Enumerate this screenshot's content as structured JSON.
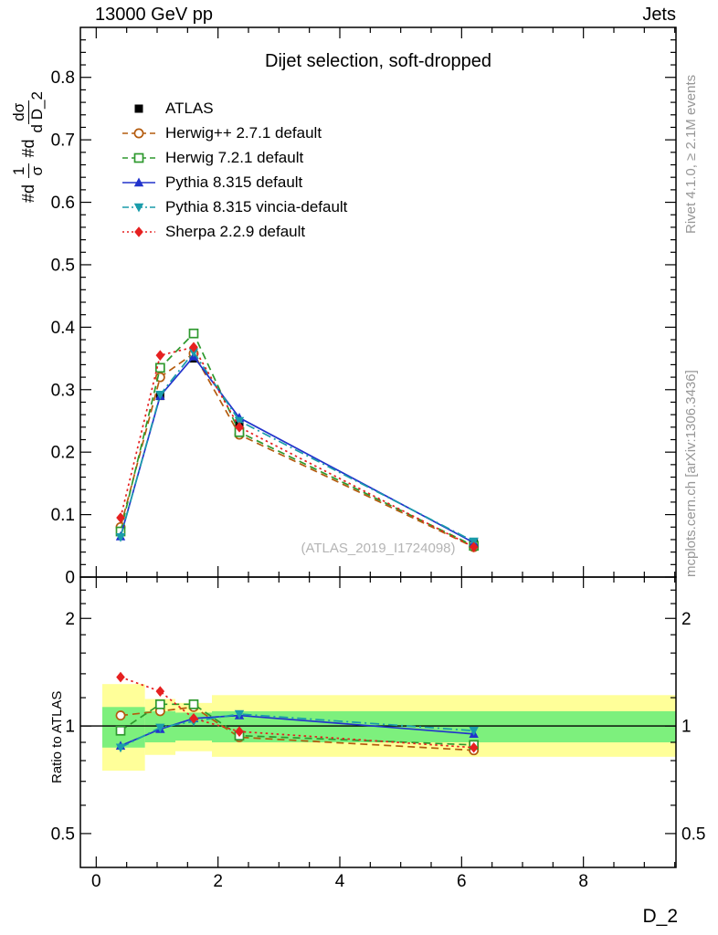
{
  "header": {
    "left": "13000 GeV pp",
    "right": "Jets"
  },
  "watermark": "(ATLAS_2019_I1724098)",
  "margin_notes": {
    "rivet": "Rivet 4.1.0, ≥ 2.1M events",
    "mcplots": "mcplots.cern.ch [arXiv:1306.3436]"
  },
  "axes": {
    "main_ylabel": {
      "t1": "#d",
      "num1": "1",
      "den1": "σ",
      "t2": "#d",
      "num2": "dσ",
      "den2": "d D_2"
    }
  },
  "chart_data": {
    "type": "line",
    "title": "Dijet selection, soft-dropped",
    "xlabel": "D_2",
    "x": [
      0.4,
      1.05,
      1.6,
      2.35,
      6.2
    ],
    "xlim": [
      -0.26,
      9.52
    ],
    "xticks": {
      "values": [
        0,
        2,
        4,
        6,
        8
      ],
      "labels": [
        "0",
        "2",
        "4",
        "6",
        "8"
      ],
      "minor_step": 0.5
    },
    "main_panel": {
      "ylim": [
        0,
        0.88
      ],
      "yticks": {
        "values": [
          0,
          0.1,
          0.2,
          0.3,
          0.4,
          0.5,
          0.6,
          0.7,
          0.8
        ],
        "labels": [
          "0",
          "0.1",
          "0.2",
          "0.3",
          "0.4",
          "0.5",
          "0.6",
          "0.7",
          "0.8"
        ],
        "minor_step": 0.02
      }
    },
    "ratio_panel": {
      "ylabel": "Ratio to ATLAS",
      "scale": "log",
      "ylim": [
        0.402,
        2.61
      ],
      "yticks": {
        "values": [
          0.5,
          1,
          2
        ],
        "labels": [
          "0.5",
          "1",
          "2"
        ]
      },
      "minor_yticks": [
        0.6,
        0.7,
        0.8,
        0.9,
        1.2,
        1.4,
        1.6,
        1.8,
        2.2,
        2.4
      ],
      "ref_line": 1,
      "band_colors": {
        "yellow": "#ffff99",
        "green": "#7df07d"
      },
      "bands": [
        {
          "x0": 0.1,
          "x1": 0.8,
          "yellow": [
            0.75,
            1.31
          ],
          "green": [
            0.87,
            1.13
          ]
        },
        {
          "x0": 0.8,
          "x1": 1.3,
          "yellow": [
            0.83,
            1.19
          ],
          "green": [
            0.9,
            1.1
          ]
        },
        {
          "x0": 1.3,
          "x1": 1.9,
          "yellow": [
            0.85,
            1.16
          ],
          "green": [
            0.91,
            1.09
          ]
        },
        {
          "x0": 1.9,
          "x1": 2.8,
          "yellow": [
            0.82,
            1.22
          ],
          "green": [
            0.9,
            1.1
          ]
        },
        {
          "x0": 2.8,
          "x1": 9.52,
          "yellow": [
            0.82,
            1.22
          ],
          "green": [
            0.9,
            1.1
          ]
        }
      ]
    },
    "series": [
      {
        "name": "ATLAS",
        "color": "#000000",
        "marker": "square",
        "line": "none",
        "values": [
          0.075,
          0.29,
          0.35,
          0.245,
          0.055
        ],
        "ratio": null
      },
      {
        "name": "Herwig++ 2.7.1 default",
        "color": "#b45b0e",
        "marker": "circle-open",
        "line": "dashed",
        "values": [
          0.08,
          0.32,
          0.358,
          0.228,
          0.048
        ],
        "ratio": [
          1.07,
          1.1,
          1.13,
          0.93,
          0.855
        ]
      },
      {
        "name": "Herwig 7.2.1 default",
        "color": "#2e992e",
        "marker": "square-open",
        "line": "dashed",
        "values": [
          0.073,
          0.335,
          0.39,
          0.232,
          0.05
        ],
        "ratio": [
          0.97,
          1.15,
          1.15,
          0.94,
          0.885
        ]
      },
      {
        "name": "Pythia 8.315 default",
        "color": "#2233cc",
        "marker": "triangle-up",
        "line": "solid",
        "values": [
          0.065,
          0.29,
          0.353,
          0.255,
          0.055
        ],
        "ratio": [
          0.88,
          0.98,
          1.05,
          1.07,
          0.95
        ]
      },
      {
        "name": "Pythia 8.315 vincia-default",
        "color": "#1a9caa",
        "marker": "triangle-down",
        "line": "dashdot",
        "values": [
          0.064,
          0.292,
          0.36,
          0.25,
          0.057
        ],
        "ratio": [
          0.87,
          0.99,
          1.03,
          1.08,
          0.97
        ]
      },
      {
        "name": "Sherpa 2.2.9 default",
        "color": "#e62020",
        "marker": "diamond",
        "line": "dotted",
        "values": [
          0.095,
          0.355,
          0.368,
          0.24,
          0.048
        ],
        "ratio": [
          1.37,
          1.25,
          1.05,
          0.965,
          0.87
        ]
      }
    ]
  }
}
